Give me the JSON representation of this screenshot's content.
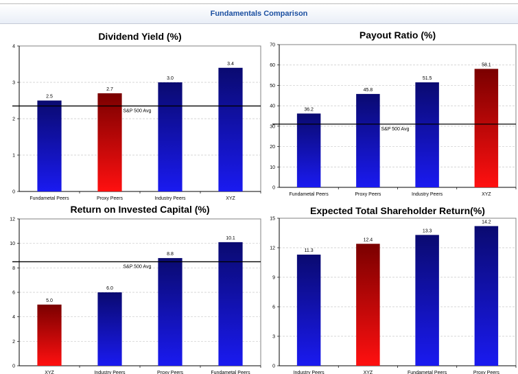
{
  "header": {
    "title": "Fundamentals Comparison"
  },
  "colors": {
    "navy_gradient": [
      "#0a0a70",
      "#1a1af0"
    ],
    "red_gradient": [
      "#7a0000",
      "#ff1010"
    ],
    "header_text": "#1b4fa0"
  },
  "chart_data": [
    {
      "type": "bar",
      "title": "Dividend Yield (%)",
      "categories": [
        "Fundametal Peers",
        "Proxy Peers",
        "Industry Peers",
        "XYZ"
      ],
      "values": [
        2.5,
        2.7,
        3.0,
        3.4
      ],
      "value_labels": [
        "2.5",
        "2.7",
        "3.0",
        "3.4"
      ],
      "bar_colors": [
        "navy",
        "red",
        "navy",
        "navy"
      ],
      "ylim": [
        0,
        4
      ],
      "yticks": [
        "0",
        "1",
        "2",
        "3",
        "4"
      ],
      "reference_line": {
        "label": "S&P 500 Avg",
        "value": 2.35
      },
      "grid": true
    },
    {
      "type": "bar",
      "title": "Payout Ratio (%)",
      "categories": [
        "Fundametal Peers",
        "Proxy Peers",
        "Industry Peers",
        "XYZ"
      ],
      "values": [
        36.2,
        45.8,
        51.5,
        58.1
      ],
      "value_labels": [
        "36.2",
        "45.8",
        "51.5",
        "58.1"
      ],
      "bar_colors": [
        "navy",
        "navy",
        "navy",
        "red"
      ],
      "ylim": [
        0,
        70
      ],
      "yticks": [
        "0",
        "10",
        "20",
        "30",
        "40",
        "50",
        "60",
        "70"
      ],
      "reference_line": {
        "label": "S&P 500 Avg",
        "value": 31
      },
      "grid": true
    },
    {
      "type": "bar",
      "title": "Return on Invested Capital (%)",
      "categories": [
        "XYZ",
        "Industry Peers",
        "Proxy Peers",
        "Fundametal Peers"
      ],
      "values": [
        5.0,
        6.0,
        8.8,
        10.1
      ],
      "value_labels": [
        "5.0",
        "6.0",
        "8.8",
        "10.1"
      ],
      "bar_colors": [
        "red",
        "navy",
        "navy",
        "navy"
      ],
      "ylim": [
        0,
        12
      ],
      "yticks": [
        "0",
        "2",
        "4",
        "6",
        "8",
        "10",
        "12"
      ],
      "reference_line": {
        "label": "S&P 500 Avg",
        "value": 8.5
      },
      "grid": true
    },
    {
      "type": "bar",
      "title": "Expected Total Shareholder Return(%)",
      "categories": [
        "Industry Peers",
        "XYZ",
        "Fundametal Peers",
        "Proxy Peers"
      ],
      "values": [
        11.3,
        12.4,
        13.3,
        14.2
      ],
      "value_labels": [
        "11.3",
        "12.4",
        "13.3",
        "14.2"
      ],
      "bar_colors": [
        "navy",
        "red",
        "navy",
        "navy"
      ],
      "ylim": [
        0,
        15
      ],
      "yticks": [
        "0",
        "3",
        "6",
        "9",
        "12",
        "15"
      ],
      "reference_line": null,
      "grid": true
    }
  ]
}
